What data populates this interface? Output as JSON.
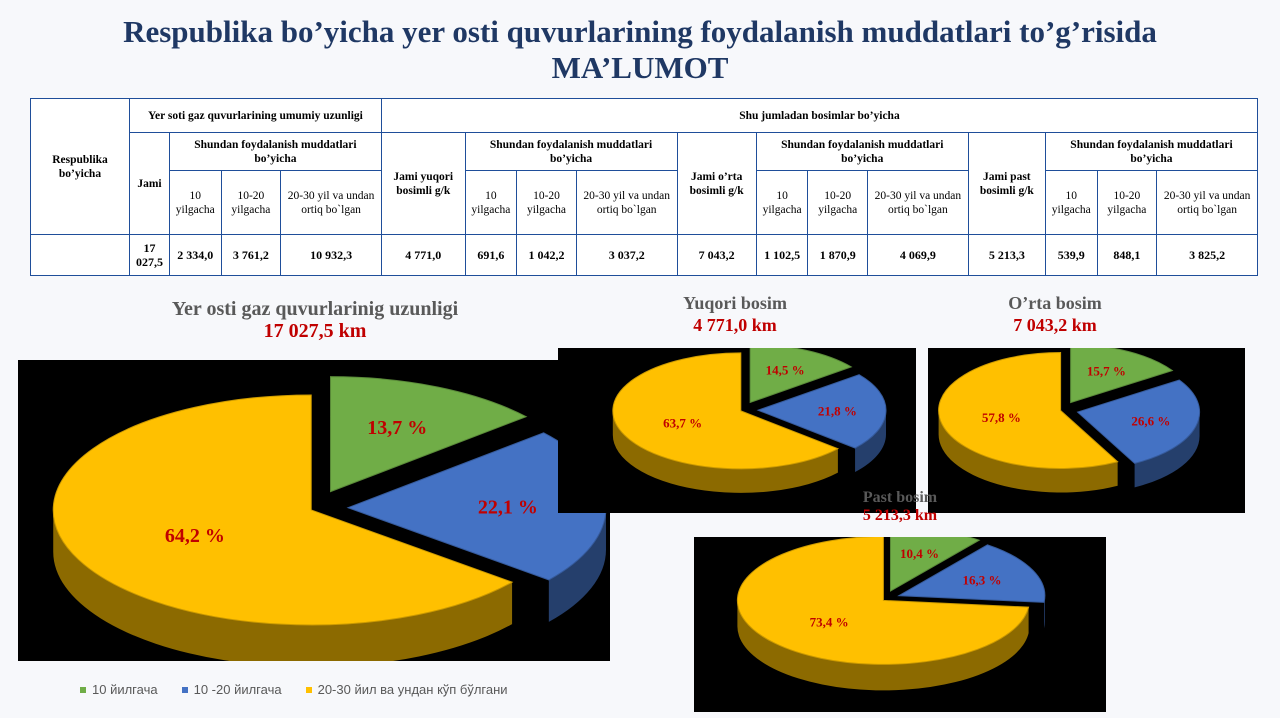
{
  "title": {
    "line1": "Respublika bo’yicha yer osti quvurlarining foydalanish muddatlari to’g’risida",
    "line2": "MA’LUMOT"
  },
  "table": {
    "h_region": "Respublika bo’yicha",
    "h_total_group": "Yer soti gaz quvurlarining umumiy uzunligi",
    "h_pressure_group": "Shu jumladan bosimlar bo’yicha",
    "h_jami": "Jami",
    "h_by_term": "Shundan foydalanish muddatlari bo’yicha",
    "h_high": "Jami yuqori bosimli g/k",
    "h_mid": "Jami o’rta bosimli g/k",
    "h_low": "Jami past bosimli g/k",
    "h_10": "10 yilgacha",
    "h_10_20": "10-20 yilgacha",
    "h_20_30": "20-30 yil va undan ortiq bo`lgan",
    "values": [
      "17 027,5",
      "2 334,0",
      "3 761,2",
      "10 932,3",
      "4 771,0",
      "691,6",
      "1 042,2",
      "3 037,2",
      "7 043,2",
      "1 102,5",
      "1 870,9",
      "4 069,9",
      "5 213,3",
      "539,9",
      "848,1",
      "3 825,2"
    ]
  },
  "colors": {
    "green": "#70ad47",
    "blue": "#4472c4",
    "yellow": "#ffc000",
    "label_red": "#c00000",
    "title_navy": "#1f3864"
  },
  "legend": [
    "10 йилгача",
    "10 -20 йилгача",
    "20-30 йил ва ундан кўп бўлгани"
  ],
  "chart_data": [
    {
      "type": "pie",
      "title": "Yer osti gaz quvurlarinig uzunligi",
      "subtitle": "17 027,5 km",
      "categories": [
        "10 йилгача",
        "10 -20 йилгача",
        "20-30 йил ва ундан кўп бўлгани"
      ],
      "values": [
        13.7,
        22.1,
        64.2
      ],
      "labels": [
        "13,7 %",
        "22,1 %",
        "64,2 %"
      ],
      "legend_placement": "bottom"
    },
    {
      "type": "pie",
      "title": "Yuqori bosim",
      "subtitle": "4 771,0 km",
      "categories": [
        "10 йилгача",
        "10 -20 йилгача",
        "20-30 йил ва ундан кўп бўлгани"
      ],
      "values": [
        14.5,
        21.8,
        63.7
      ],
      "labels": [
        "14,5 %",
        "21,8 %",
        "63,7 %"
      ]
    },
    {
      "type": "pie",
      "title": "O’rta bosim",
      "subtitle": "7 043,2 km",
      "categories": [
        "10 йилгача",
        "10 -20 йилгача",
        "20-30 йил ва ундан кўп бўлгани"
      ],
      "values": [
        15.7,
        26.6,
        57.8
      ],
      "labels": [
        "15,7 %",
        "26,6 %",
        "57,8 %"
      ]
    },
    {
      "type": "pie",
      "title": "Past bosim",
      "subtitle": "5 213,3 km",
      "categories": [
        "10 йилгача",
        "10 -20 йилгача",
        "20-30 йил ва ундан кўп бўлгани"
      ],
      "values": [
        10.4,
        16.3,
        73.4
      ],
      "labels": [
        "10,4 %",
        "16,3 %",
        "73,4 %"
      ]
    }
  ]
}
